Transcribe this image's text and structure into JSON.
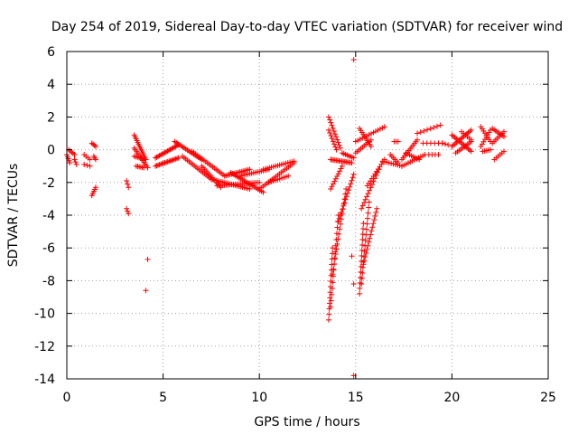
{
  "chart_data": {
    "type": "scatter",
    "title": "Day 254 of 2019, Sidereal Day-to-day VTEC variation (SDTVAR) for receiver wind",
    "xlabel": "GPS time / hours",
    "ylabel": "SDTVAR / TECUs",
    "xlim": [
      0,
      25
    ],
    "ylim": [
      -14,
      6
    ],
    "xticks": [
      0,
      5,
      10,
      15,
      20,
      25
    ],
    "yticks": [
      6,
      4,
      2,
      0,
      -2,
      -4,
      -6,
      -8,
      -10,
      -12,
      -14
    ],
    "xtick_labels": [
      "0",
      "5",
      "10",
      "15",
      "20",
      "25"
    ],
    "ytick_labels": [
      "6",
      "4",
      "2",
      "0",
      "-2",
      "-4",
      "-6",
      "-8",
      "-10",
      "-12",
      "-14"
    ],
    "grid": true,
    "marker": "+",
    "color": "#ff0000",
    "series": [
      {
        "name": "SDTVAR",
        "segments": [
          {
            "x0": 0.0,
            "y0": -0.3,
            "x1": 0.15,
            "y1": -0.8,
            "n": 5
          },
          {
            "x0": 0.1,
            "y0": 0.0,
            "x1": 0.4,
            "y1": -0.3,
            "n": 5
          },
          {
            "x0": 0.4,
            "y0": -0.6,
            "x1": 0.5,
            "y1": -0.9,
            "n": 3
          },
          {
            "x0": 0.9,
            "y0": -0.3,
            "x1": 1.2,
            "y1": -0.6,
            "n": 4
          },
          {
            "x0": 0.9,
            "y0": -0.9,
            "x1": 1.2,
            "y1": -1.0,
            "n": 3
          },
          {
            "x0": 1.3,
            "y0": 0.4,
            "x1": 1.5,
            "y1": 0.2,
            "n": 4
          },
          {
            "x0": 1.3,
            "y0": -2.8,
            "x1": 1.5,
            "y1": -2.3,
            "n": 5
          },
          {
            "x0": 1.4,
            "y0": -0.4,
            "x1": 1.5,
            "y1": -0.6,
            "n": 3
          },
          {
            "x0": 3.1,
            "y0": -1.9,
            "x1": 3.2,
            "y1": -2.3,
            "n": 3
          },
          {
            "x0": 3.1,
            "y0": -3.6,
            "x1": 3.2,
            "y1": -3.9,
            "n": 3
          },
          {
            "x0": 3.5,
            "y0": 0.9,
            "x1": 4.1,
            "y1": -0.6,
            "n": 14
          },
          {
            "x0": 3.5,
            "y0": 0.1,
            "x1": 4.2,
            "y1": -1.1,
            "n": 12
          },
          {
            "x0": 3.5,
            "y0": -0.4,
            "x1": 4.1,
            "y1": -0.6,
            "n": 8
          },
          {
            "x0": 3.6,
            "y0": -1.0,
            "x1": 4.0,
            "y1": -1.1,
            "n": 6
          },
          {
            "x0": 4.2,
            "y0": -6.7,
            "x1": 4.2,
            "y1": -6.7,
            "n": 1
          },
          {
            "x0": 4.1,
            "y0": -8.6,
            "x1": 4.1,
            "y1": -8.6,
            "n": 1
          },
          {
            "x0": 4.6,
            "y0": -0.5,
            "x1": 5.8,
            "y1": 0.3,
            "n": 18
          },
          {
            "x0": 4.6,
            "y0": -1.0,
            "x1": 5.8,
            "y1": -0.5,
            "n": 18
          },
          {
            "x0": 5.6,
            "y0": 0.5,
            "x1": 7.0,
            "y1": -0.6,
            "n": 18
          },
          {
            "x0": 6.0,
            "y0": -0.4,
            "x1": 7.5,
            "y1": -1.8,
            "n": 18
          },
          {
            "x0": 6.5,
            "y0": -0.1,
            "x1": 8.2,
            "y1": -1.6,
            "n": 20
          },
          {
            "x0": 7.0,
            "y0": -1.0,
            "x1": 8.0,
            "y1": -2.3,
            "n": 14
          },
          {
            "x0": 7.5,
            "y0": -1.8,
            "x1": 9.5,
            "y1": -2.4,
            "n": 22
          },
          {
            "x0": 7.8,
            "y0": -2.2,
            "x1": 10.0,
            "y1": -2.0,
            "n": 24
          },
          {
            "x0": 8.2,
            "y0": -1.6,
            "x1": 9.5,
            "y1": -1.2,
            "n": 16
          },
          {
            "x0": 8.5,
            "y0": -1.4,
            "x1": 10.2,
            "y1": -2.6,
            "n": 20
          },
          {
            "x0": 9.0,
            "y0": -1.6,
            "x1": 10.5,
            "y1": -1.2,
            "n": 16
          },
          {
            "x0": 10.0,
            "y0": -2.4,
            "x1": 11.8,
            "y1": -0.8,
            "n": 20
          },
          {
            "x0": 10.2,
            "y0": -1.2,
            "x1": 11.8,
            "y1": -0.7,
            "n": 16
          },
          {
            "x0": 10.5,
            "y0": -2.0,
            "x1": 11.5,
            "y1": -1.6,
            "n": 10
          },
          {
            "x0": 13.6,
            "y0": 2.0,
            "x1": 14.2,
            "y1": 0.1,
            "n": 12
          },
          {
            "x0": 13.6,
            "y0": 1.2,
            "x1": 14.0,
            "y1": 0.0,
            "n": 8
          },
          {
            "x0": 13.6,
            "y0": -10.4,
            "x1": 13.8,
            "y1": -6.0,
            "n": 14
          },
          {
            "x0": 13.7,
            "y0": -9.6,
            "x1": 14.1,
            "y1": -4.0,
            "n": 16
          },
          {
            "x0": 13.8,
            "y0": -7.6,
            "x1": 14.5,
            "y1": -2.4,
            "n": 18
          },
          {
            "x0": 14.1,
            "y0": -4.4,
            "x1": 14.9,
            "y1": -1.5,
            "n": 16
          },
          {
            "x0": 13.7,
            "y0": -0.6,
            "x1": 14.8,
            "y1": -0.8,
            "n": 16
          },
          {
            "x0": 13.7,
            "y0": -2.4,
            "x1": 14.3,
            "y1": -1.0,
            "n": 10
          },
          {
            "x0": 14.3,
            "y0": -0.2,
            "x1": 14.9,
            "y1": -0.5,
            "n": 8
          },
          {
            "x0": 14.9,
            "y0": 5.5,
            "x1": 14.9,
            "y1": 5.5,
            "n": 1
          },
          {
            "x0": 14.8,
            "y0": -6.5,
            "x1": 14.8,
            "y1": -6.5,
            "n": 1
          },
          {
            "x0": 14.9,
            "y0": -8.2,
            "x1": 14.9,
            "y1": -8.2,
            "n": 1
          },
          {
            "x0": 14.9,
            "y0": -13.8,
            "x1": 14.9,
            "y1": -13.8,
            "n": 1
          },
          {
            "x0": 15.0,
            "y0": 0.5,
            "x1": 16.5,
            "y1": 1.4,
            "n": 14
          },
          {
            "x0": 15.0,
            "y0": -0.2,
            "x1": 15.8,
            "y1": 0.6,
            "n": 10
          },
          {
            "x0": 15.2,
            "y0": 1.3,
            "x1": 15.8,
            "y1": 0.2,
            "n": 10
          },
          {
            "x0": 15.2,
            "y0": -8.8,
            "x1": 15.4,
            "y1": -4.5,
            "n": 14
          },
          {
            "x0": 15.3,
            "y0": -8.2,
            "x1": 15.7,
            "y1": -3.2,
            "n": 16
          },
          {
            "x0": 15.4,
            "y0": -7.0,
            "x1": 16.1,
            "y1": -3.6,
            "n": 16
          },
          {
            "x0": 15.3,
            "y0": -3.6,
            "x1": 16.2,
            "y1": -1.2,
            "n": 14
          },
          {
            "x0": 15.6,
            "y0": -2.2,
            "x1": 16.5,
            "y1": -0.6,
            "n": 12
          },
          {
            "x0": 16.4,
            "y0": -0.7,
            "x1": 17.4,
            "y1": -1.0,
            "n": 10
          },
          {
            "x0": 16.8,
            "y0": -0.3,
            "x1": 17.2,
            "y1": -0.8,
            "n": 6
          },
          {
            "x0": 17.0,
            "y0": 0.5,
            "x1": 17.2,
            "y1": 0.5,
            "n": 3
          },
          {
            "x0": 17.4,
            "y0": -0.6,
            "x1": 18.2,
            "y1": 0.6,
            "n": 12
          },
          {
            "x0": 17.4,
            "y0": -1.0,
            "x1": 18.6,
            "y1": -0.3,
            "n": 12
          },
          {
            "x0": 17.6,
            "y0": -0.2,
            "x1": 18.3,
            "y1": -0.6,
            "n": 8
          },
          {
            "x0": 18.2,
            "y0": 1.0,
            "x1": 19.4,
            "y1": 1.5,
            "n": 8
          },
          {
            "x0": 18.5,
            "y0": 0.4,
            "x1": 19.5,
            "y1": 0.4,
            "n": 6
          },
          {
            "x0": 18.8,
            "y0": -0.3,
            "x1": 19.3,
            "y1": -0.3,
            "n": 4
          },
          {
            "x0": 19.5,
            "y0": 0.4,
            "x1": 19.8,
            "y1": 0.3,
            "n": 3
          },
          {
            "x0": 20.0,
            "y0": 0.2,
            "x1": 21.0,
            "y1": 1.2,
            "n": 14
          },
          {
            "x0": 20.0,
            "y0": 0.9,
            "x1": 21.0,
            "y1": -0.1,
            "n": 14
          },
          {
            "x0": 20.2,
            "y0": -0.2,
            "x1": 21.0,
            "y1": 0.5,
            "n": 10
          },
          {
            "x0": 20.5,
            "y0": 1.1,
            "x1": 21.0,
            "y1": 0.6,
            "n": 6
          },
          {
            "x0": 21.5,
            "y0": 1.4,
            "x1": 22.0,
            "y1": 0.5,
            "n": 8
          },
          {
            "x0": 21.5,
            "y0": 0.2,
            "x1": 22.0,
            "y1": 1.2,
            "n": 8
          },
          {
            "x0": 21.6,
            "y0": -0.1,
            "x1": 22.0,
            "y1": 0.0,
            "n": 5
          },
          {
            "x0": 22.1,
            "y0": 1.3,
            "x1": 22.7,
            "y1": 0.8,
            "n": 8
          },
          {
            "x0": 22.1,
            "y0": 0.4,
            "x1": 22.7,
            "y1": 1.1,
            "n": 8
          },
          {
            "x0": 22.2,
            "y0": -0.6,
            "x1": 22.7,
            "y1": -0.1,
            "n": 6
          }
        ]
      }
    ]
  }
}
